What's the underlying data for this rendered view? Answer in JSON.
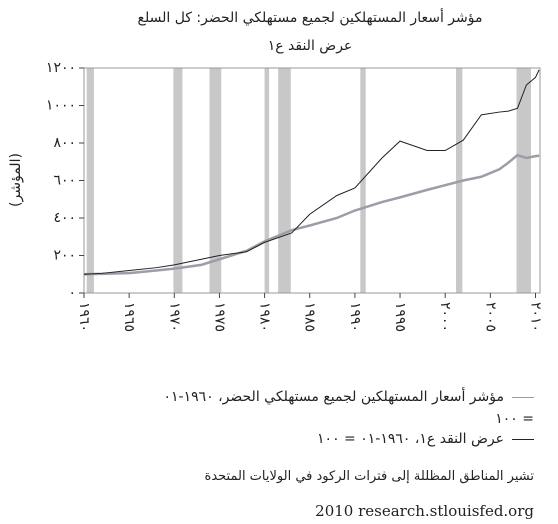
{
  "chart_data": {
    "type": "line",
    "title": "مؤشر أسعار المستهلكين لجميع مستهلكي الحضر: كل السلع",
    "subtitle": "عرض النقد ع١",
    "y_label": "(المؤشر)",
    "x": [
      1960,
      1962,
      1965,
      1968,
      1970,
      1973,
      1975,
      1978,
      1980,
      1983,
      1985,
      1988,
      1990,
      1993,
      1995,
      1998,
      2000,
      2002,
      2004,
      2006,
      2007,
      2008,
      2009,
      2010,
      2010.4
    ],
    "series": [
      {
        "name": "مؤشر أسعار المستهلكين لجميع مستهلكي الحضر، ١٩٦٠-٠١ = ١٠٠",
        "color": "#9a9ea6",
        "values": [
          100,
          102,
          106,
          120,
          130,
          150,
          180,
          225,
          275,
          335,
          360,
          400,
          440,
          485,
          510,
          550,
          575,
          600,
          620,
          660,
          695,
          735,
          720,
          730,
          732
        ]
      },
      {
        "name": "عرض النقد ع١، ١٩٦٠-٠١ = ١٠٠",
        "color": "#222222",
        "values": [
          100,
          105,
          120,
          135,
          150,
          180,
          200,
          220,
          270,
          320,
          420,
          520,
          560,
          720,
          810,
          760,
          760,
          815,
          950,
          965,
          970,
          985,
          1110,
          1150,
          1190
        ]
      }
    ],
    "recessions": [
      [
        1960.3,
        1961.1
      ],
      [
        1969.9,
        1970.9
      ],
      [
        1973.9,
        1975.2
      ],
      [
        1980.0,
        1980.5
      ],
      [
        1981.5,
        1982.9
      ],
      [
        1990.6,
        1991.2
      ],
      [
        2001.2,
        2001.9
      ],
      [
        2007.9,
        2009.5
      ]
    ],
    "recession_color": "#c8c8c8",
    "xlim": [
      1960,
      2010.5
    ],
    "ylim": [
      0,
      1200
    ],
    "xticks": [
      {
        "value": 1960,
        "label": "١٩٦٠"
      },
      {
        "value": 1965,
        "label": "١٩٦٥"
      },
      {
        "value": 1970,
        "label": "١٩٧٠"
      },
      {
        "value": 1975,
        "label": "١٩٧٥"
      },
      {
        "value": 1980,
        "label": "١٩٨٠"
      },
      {
        "value": 1985,
        "label": "١٩٨٥"
      },
      {
        "value": 1990,
        "label": "١٩٩٠"
      },
      {
        "value": 1995,
        "label": "١٩٩٥"
      },
      {
        "value": 2000,
        "label": "٢٠٠٠"
      },
      {
        "value": 2005,
        "label": "٢٠٠٥"
      },
      {
        "value": 2010,
        "label": "٢٠١٠"
      }
    ],
    "yticks": [
      {
        "value": 0,
        "label": "٠"
      },
      {
        "value": 200,
        "label": "٢٠٠"
      },
      {
        "value": 400,
        "label": "٤٠٠"
      },
      {
        "value": 600,
        "label": "٦٠٠"
      },
      {
        "value": 800,
        "label": "٨٠٠"
      },
      {
        "value": 1000,
        "label": "١٠٠٠"
      },
      {
        "value": 1200,
        "label": "١٢٠٠"
      }
    ],
    "note": "تشير المناطق المظللة إلى فترات الركود في الولايات المتحدة",
    "source": "2010 research.stlouisfed.org"
  }
}
